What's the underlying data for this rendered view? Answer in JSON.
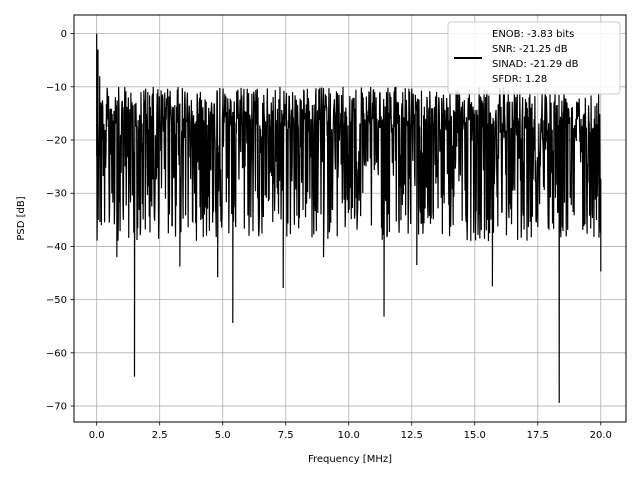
{
  "chart_data": {
    "type": "line",
    "xlabel": "Frequency [MHz]",
    "ylabel": "PSD [dB]",
    "xlim": [
      -0.9,
      21.0
    ],
    "ylim": [
      -73,
      3.5
    ],
    "xticks": [
      0.0,
      2.5,
      5.0,
      7.5,
      10.0,
      12.5,
      15.0,
      17.5,
      20.0
    ],
    "xtick_labels": [
      "0.0",
      "2.5",
      "5.0",
      "7.5",
      "10.0",
      "12.5",
      "15.0",
      "17.5",
      "20.0"
    ],
    "yticks": [
      0,
      -10,
      -20,
      -30,
      -40,
      -50,
      -60,
      -70
    ],
    "ytick_labels": [
      "0",
      "−10",
      "−20",
      "−30",
      "−40",
      "−50",
      "−60",
      "−70"
    ],
    "grid": true,
    "legend_position": "top-right",
    "legend_lines": [
      "ENOB: -3.83 bits",
      "SNR: -21.25 dB",
      "SINAD: -21.29 dB",
      "SFDR: 1.28"
    ],
    "series": [
      {
        "color": "#000000",
        "description": "noise-like PSD trace from 0 to 20 MHz, mostly between about -10 and -30 dB",
        "peaks": [
          {
            "x": 0.0,
            "y": 0.0
          },
          {
            "x": 0.05,
            "y": -3.0
          },
          {
            "x": 0.12,
            "y": -8.0
          }
        ],
        "notable_dips": [
          {
            "x": 0.8,
            "y": -42.0
          },
          {
            "x": 1.5,
            "y": -64.5
          },
          {
            "x": 3.3,
            "y": -43.8
          },
          {
            "x": 4.8,
            "y": -45.8
          },
          {
            "x": 5.4,
            "y": -54.4
          },
          {
            "x": 7.4,
            "y": -47.8
          },
          {
            "x": 9.0,
            "y": -42.0
          },
          {
            "x": 11.4,
            "y": -53.2
          },
          {
            "x": 12.7,
            "y": -43.5
          },
          {
            "x": 15.7,
            "y": -47.5
          },
          {
            "x": 18.35,
            "y": -69.4
          },
          {
            "x": 20.0,
            "y": -44.7
          }
        ],
        "upper_envelope_db": -6,
        "lower_band_db": -31,
        "end_x": 20.0
      }
    ]
  }
}
